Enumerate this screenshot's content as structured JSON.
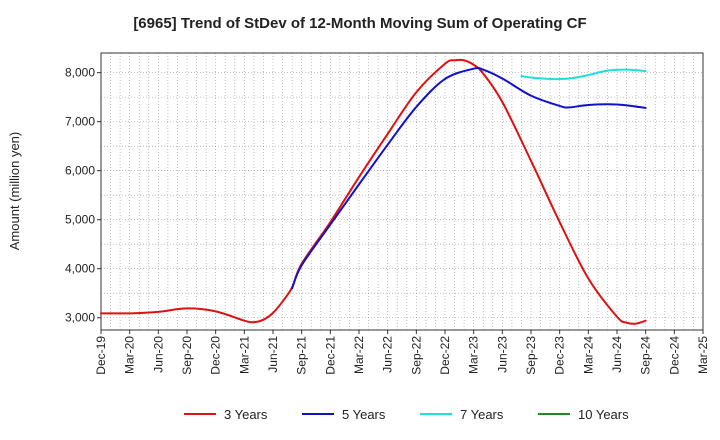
{
  "chart_data": {
    "type": "line",
    "title": "[6965]  Trend of StDev of 12-Month Moving Sum of Operating CF",
    "xlabel": "",
    "ylabel": "Amount (million yen)",
    "ylim": [
      2750,
      8400
    ],
    "yticks": [
      3000,
      4000,
      5000,
      6000,
      7000,
      8000
    ],
    "ytick_labels": [
      "3,000",
      "4,000",
      "5,000",
      "6,000",
      "7,000",
      "8,000"
    ],
    "x_range": [
      "Dec-19",
      "Mar-25"
    ],
    "xtick_labels": [
      "Dec-19",
      "Mar-20",
      "Jun-20",
      "Sep-20",
      "Dec-20",
      "Mar-21",
      "Jun-21",
      "Sep-21",
      "Dec-21",
      "Mar-22",
      "Jun-22",
      "Sep-22",
      "Dec-22",
      "Mar-23",
      "Jun-23",
      "Sep-23",
      "Dec-23",
      "Mar-24",
      "Jun-24",
      "Sep-24",
      "Dec-24",
      "Mar-25"
    ],
    "grid": true,
    "legend_position": "bottom",
    "series": [
      {
        "name": "3 Years",
        "color": "#dd1111",
        "x": [
          "Dec-19",
          "Mar-20",
          "Jun-20",
          "Sep-20",
          "Dec-20",
          "Mar-21",
          "Apr-21",
          "May-21",
          "Jun-21",
          "Jul-21",
          "Aug-21",
          "Sep-21",
          "Dec-21",
          "Mar-22",
          "Jun-22",
          "Sep-22",
          "Dec-22",
          "Jan-23",
          "Feb-23",
          "Mar-23",
          "Apr-23",
          "Jun-23",
          "Sep-23",
          "Dec-23",
          "Mar-24",
          "Jun-24",
          "Jul-24",
          "Aug-24",
          "Sep-24"
        ],
        "values": [
          3090,
          3090,
          3120,
          3190,
          3130,
          2940,
          2910,
          2960,
          3100,
          3330,
          3620,
          4100,
          4950,
          5870,
          6750,
          7600,
          8180,
          8250,
          8250,
          8160,
          7980,
          7400,
          6200,
          4950,
          3800,
          3020,
          2900,
          2880,
          2940
        ]
      },
      {
        "name": "5 Years",
        "color": "#1111cc",
        "x": [
          "Aug-21",
          "Sep-21",
          "Dec-21",
          "Mar-22",
          "Jun-22",
          "Sep-22",
          "Dec-22",
          "Mar-23",
          "Apr-23",
          "Jun-23",
          "Sep-23",
          "Dec-23",
          "Jan-24",
          "Mar-24",
          "Jun-24",
          "Sep-24"
        ],
        "values": [
          3600,
          4070,
          4900,
          5720,
          6530,
          7300,
          7870,
          8080,
          8060,
          7880,
          7530,
          7320,
          7290,
          7340,
          7350,
          7280
        ]
      },
      {
        "name": "7 Years",
        "color": "#22dddd",
        "x": [
          "Aug-23",
          "Sep-23",
          "Nov-23",
          "Jan-24",
          "Mar-24",
          "May-24",
          "Jul-24",
          "Sep-24"
        ],
        "values": [
          7930,
          7900,
          7870,
          7880,
          7950,
          8040,
          8060,
          8030
        ]
      },
      {
        "name": "10 Years",
        "color": "#228822",
        "x": [],
        "values": []
      }
    ]
  }
}
